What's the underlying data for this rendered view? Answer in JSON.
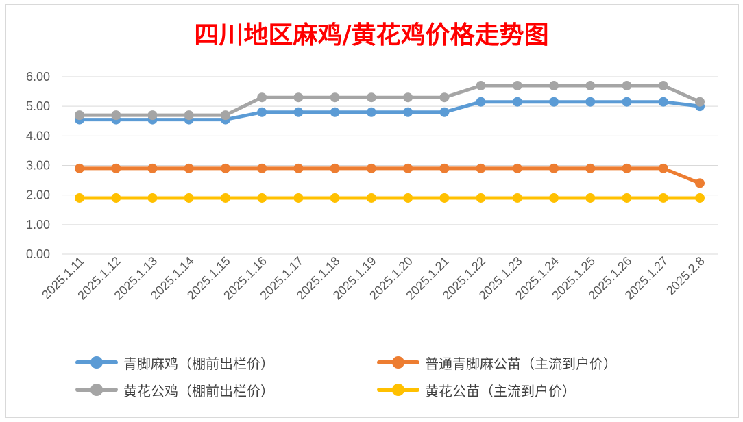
{
  "chart_data": {
    "type": "line",
    "title": "四川地区麻鸡/黄花鸡价格走势图",
    "xlabel": "",
    "ylabel": "",
    "ylim": [
      0,
      6
    ],
    "yticks": [
      "0.00",
      "1.00",
      "2.00",
      "3.00",
      "4.00",
      "5.00",
      "6.00"
    ],
    "categories": [
      "2025.1.11",
      "2025.1.12",
      "2025.1.13",
      "2025.1.14",
      "2025.1.15",
      "2025.1.16",
      "2025.1.17",
      "2025.1.18",
      "2025.1.19",
      "2025.1.20",
      "2025.1.21",
      "2025.1.22",
      "2025.1.23",
      "2025.1.24",
      "2025.1.25",
      "2025.1.26",
      "2025.1.27",
      "2025.2.8"
    ],
    "grid": true,
    "legend_position": "bottom",
    "series": [
      {
        "name": "青脚麻鸡（棚前出栏价）",
        "color": "#5b9bd5",
        "values": [
          4.55,
          4.55,
          4.55,
          4.55,
          4.55,
          4.8,
          4.8,
          4.8,
          4.8,
          4.8,
          4.8,
          5.15,
          5.15,
          5.15,
          5.15,
          5.15,
          5.15,
          5.0
        ]
      },
      {
        "name": "普通青脚麻公苗（主流到户价）",
        "color": "#ed7d31",
        "values": [
          2.9,
          2.9,
          2.9,
          2.9,
          2.9,
          2.9,
          2.9,
          2.9,
          2.9,
          2.9,
          2.9,
          2.9,
          2.9,
          2.9,
          2.9,
          2.9,
          2.9,
          2.4
        ]
      },
      {
        "name": "黄花公鸡（棚前出栏价）",
        "color": "#a5a5a5",
        "values": [
          4.7,
          4.7,
          4.7,
          4.7,
          4.7,
          5.3,
          5.3,
          5.3,
          5.3,
          5.3,
          5.3,
          5.7,
          5.7,
          5.7,
          5.7,
          5.7,
          5.7,
          5.15
        ]
      },
      {
        "name": "黄花公苗（主流到户价）",
        "color": "#ffc000",
        "values": [
          1.9,
          1.9,
          1.9,
          1.9,
          1.9,
          1.9,
          1.9,
          1.9,
          1.9,
          1.9,
          1.9,
          1.9,
          1.9,
          1.9,
          1.9,
          1.9,
          1.9,
          1.9
        ]
      }
    ]
  }
}
